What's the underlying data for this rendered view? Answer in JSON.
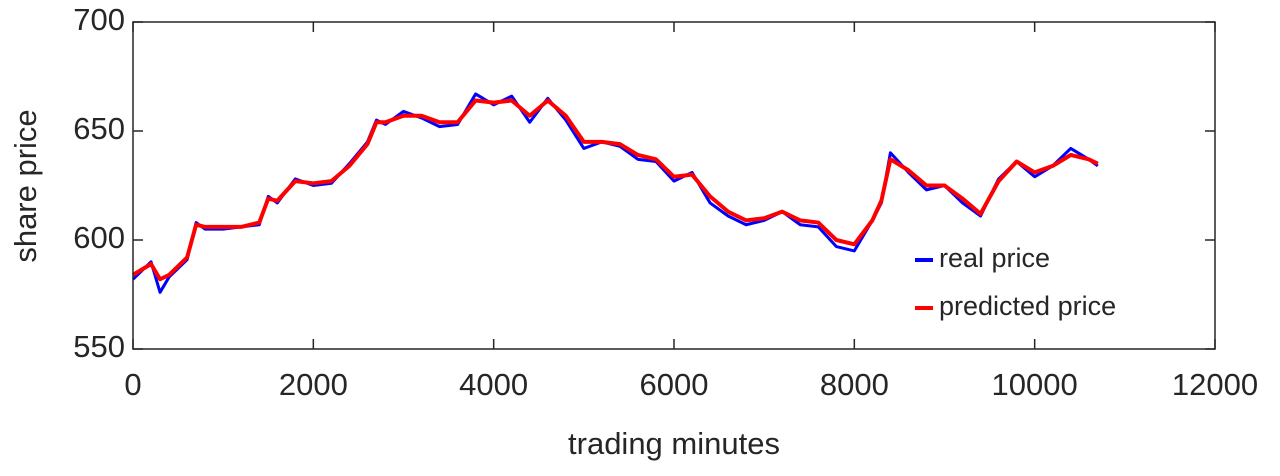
{
  "chart_data": {
    "type": "line",
    "x_label": "trading minutes",
    "y_label": "share price",
    "x": [
      0,
      200,
      300,
      400,
      600,
      700,
      800,
      1000,
      1200,
      1400,
      1500,
      1600,
      1800,
      2000,
      2200,
      2400,
      2600,
      2700,
      2800,
      3000,
      3200,
      3400,
      3600,
      3800,
      4000,
      4200,
      4400,
      4600,
      4800,
      5000,
      5200,
      5400,
      5600,
      5800,
      6000,
      6200,
      6400,
      6600,
      6800,
      7000,
      7200,
      7400,
      7600,
      7800,
      8000,
      8200,
      8300,
      8400,
      8600,
      8800,
      9000,
      9200,
      9400,
      9600,
      9800,
      10000,
      10200,
      10400,
      10600,
      10700
    ],
    "series": [
      {
        "name": "real price",
        "color": "#0000ff",
        "values": [
          582,
          590,
          576,
          583,
          591,
          608,
          605,
          605,
          606,
          607,
          620,
          617,
          628,
          625,
          626,
          635,
          645,
          655,
          653,
          659,
          656,
          652,
          653,
          667,
          662,
          666,
          654,
          665,
          655,
          642,
          645,
          643,
          637,
          636,
          627,
          631,
          617,
          611,
          607,
          609,
          613,
          607,
          606,
          597,
          595,
          609,
          617,
          640,
          631,
          623,
          625,
          617,
          611,
          628,
          636,
          629,
          634,
          642,
          637,
          634
        ]
      },
      {
        "name": "predicted price",
        "color": "#ff0000",
        "values": [
          584,
          589,
          582,
          584,
          592,
          607,
          606,
          606,
          606,
          608,
          619,
          618,
          627,
          626,
          627,
          634,
          644,
          654,
          654,
          657,
          657,
          654,
          654,
          664,
          663,
          664,
          657,
          664,
          657,
          645,
          645,
          644,
          639,
          637,
          629,
          630,
          620,
          613,
          609,
          610,
          613,
          609,
          608,
          600,
          598,
          609,
          618,
          637,
          632,
          625,
          625,
          619,
          612,
          627,
          636,
          631,
          634,
          639,
          637,
          635
        ]
      }
    ],
    "xlim": [
      0,
      12000
    ],
    "xticks": [
      0,
      2000,
      4000,
      6000,
      8000,
      10000,
      12000
    ],
    "ylim": [
      550,
      700
    ],
    "yticks": [
      550,
      600,
      650,
      700
    ],
    "grid": false,
    "legend": "lower right"
  }
}
